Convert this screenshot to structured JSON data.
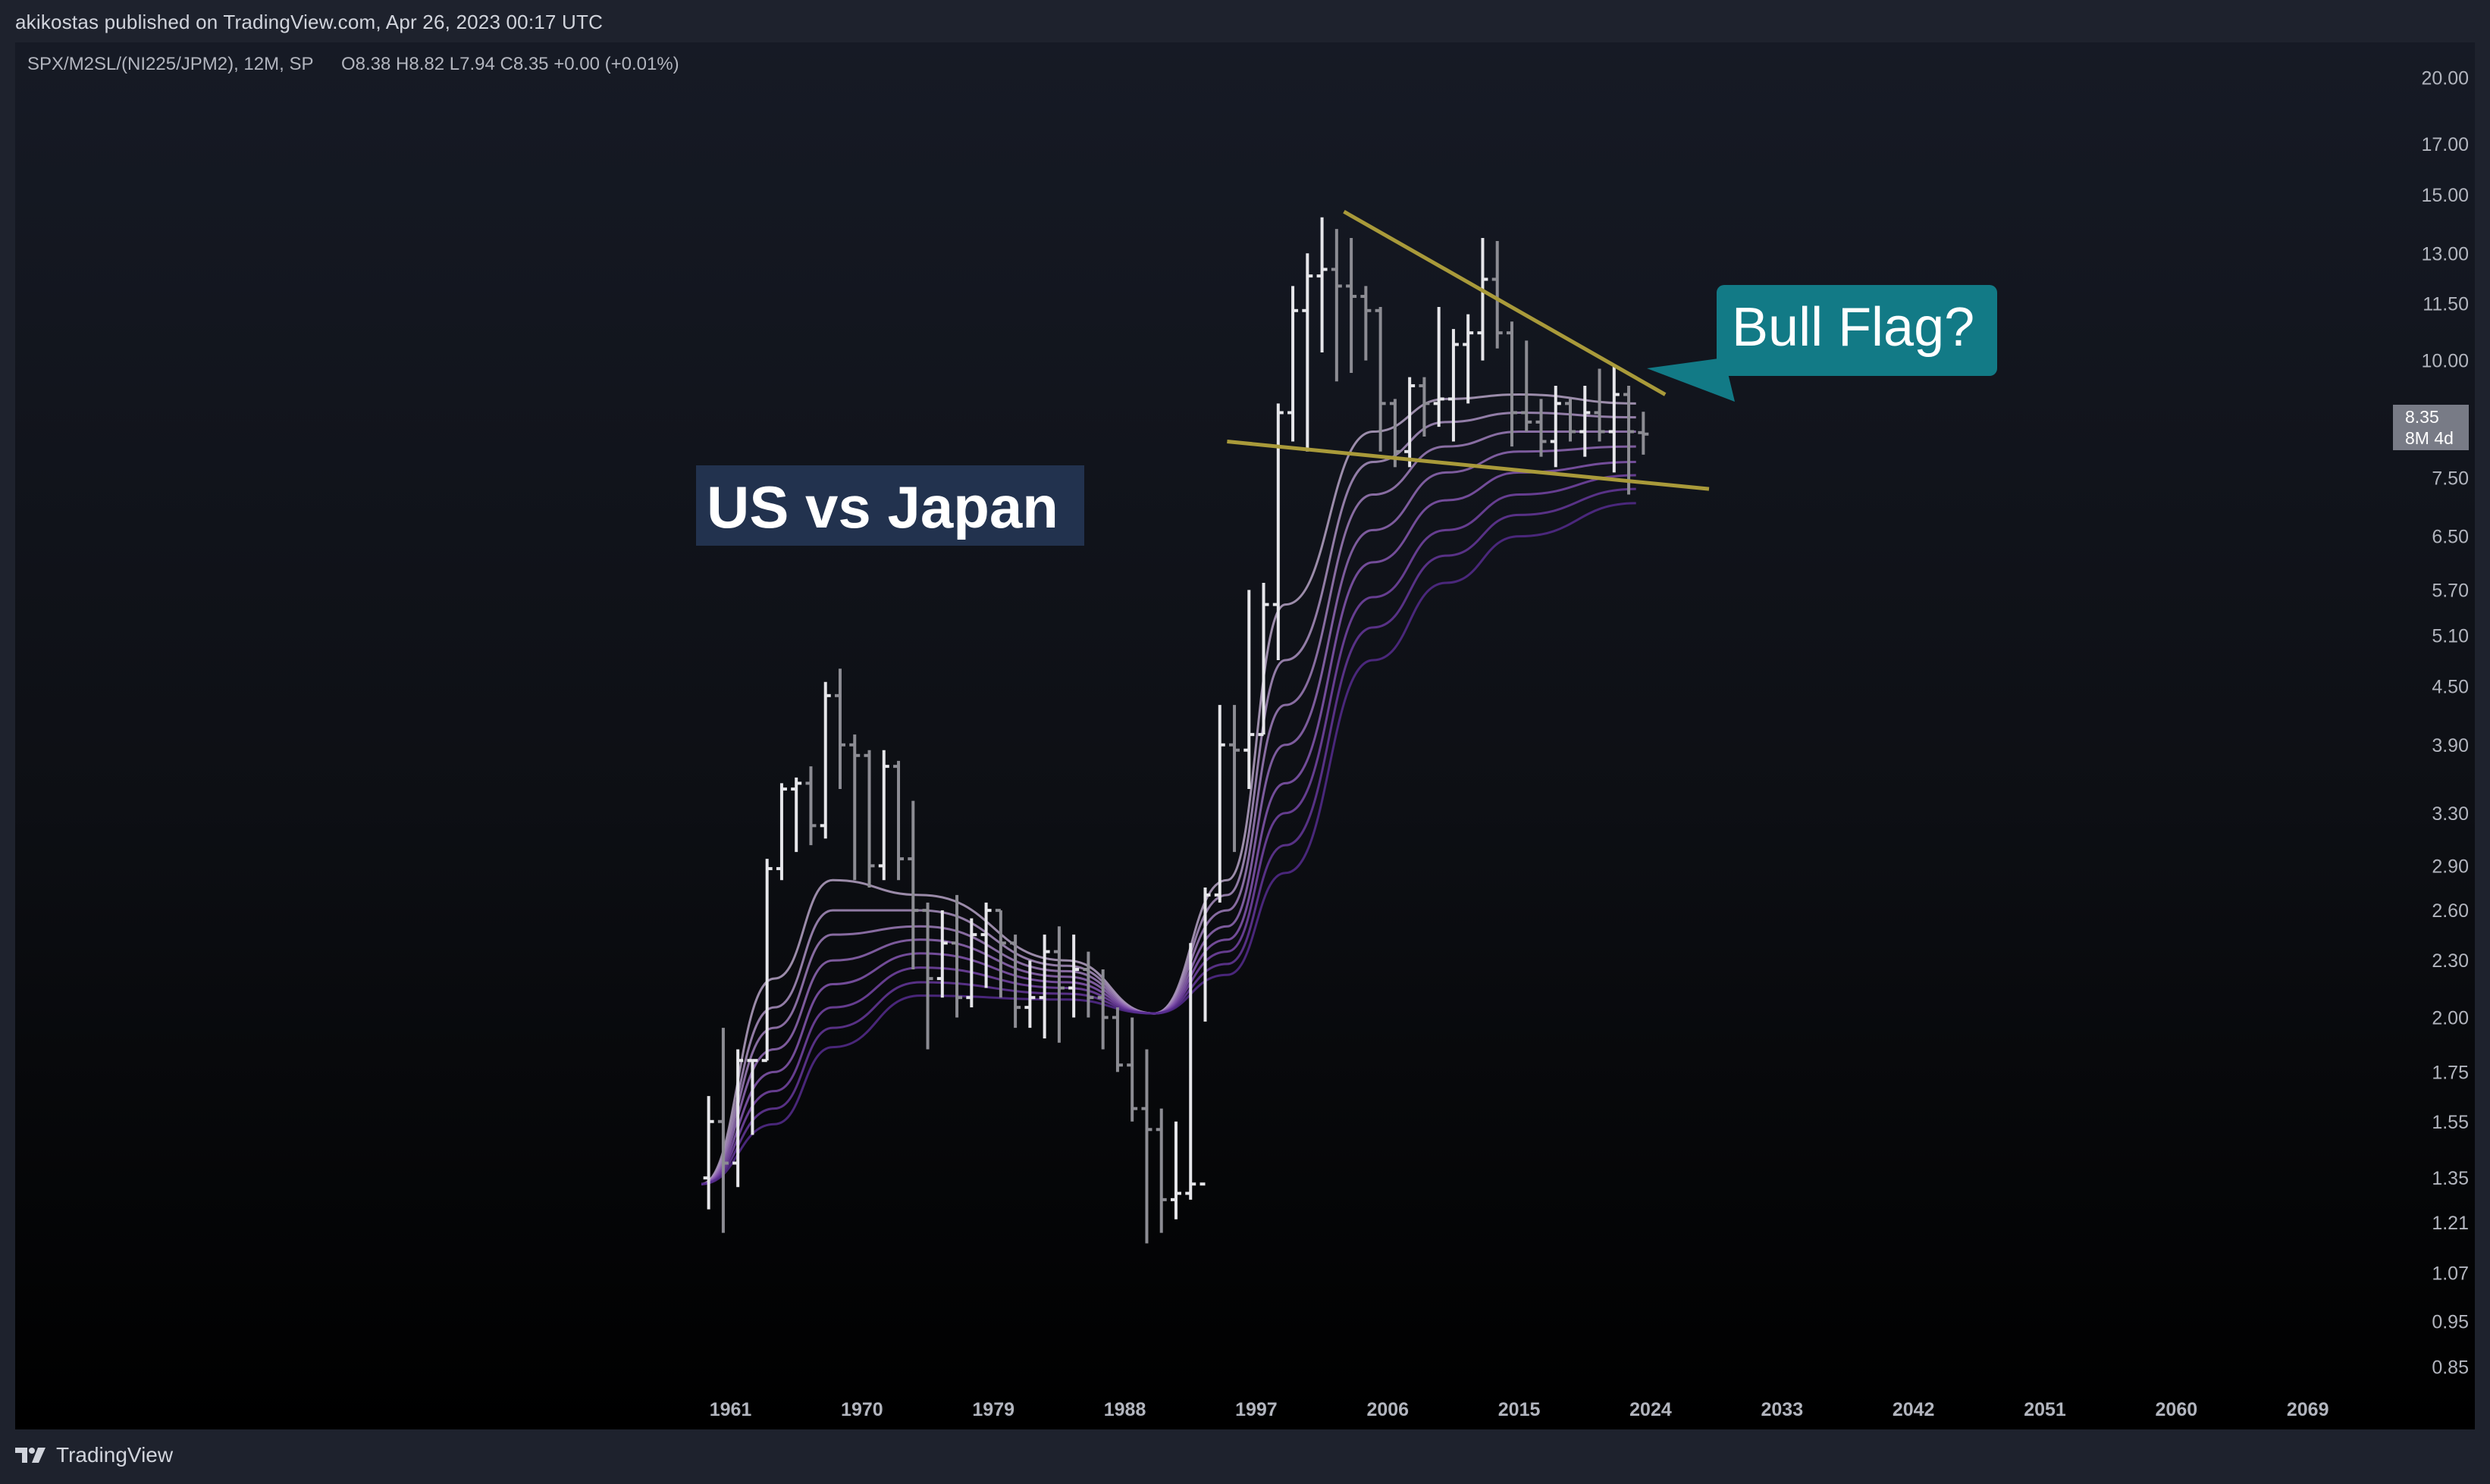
{
  "header": {
    "published_by": "akikostas published on TradingView.com, Apr 26, 2023 00:17 UTC"
  },
  "legend": {
    "symbol": "SPX/M2SL/(NI225/JPM2), 12M, SP",
    "ohlc": "O8.38  H8.82  L7.94  C8.35  +0.00 (+0.01%)"
  },
  "footer": {
    "brand": "TradingView"
  },
  "annotations": {
    "title": "US vs Japan",
    "callout": "Bull Flag?"
  },
  "price_tag": {
    "value": "8.35",
    "countdown": "8M 4d"
  },
  "colors": {
    "background": "#000000",
    "frame": "#1e222d",
    "bar_up": "#e6e6ea",
    "bar_down": "#8c8c93",
    "trendline": "#a99a3a",
    "callout": "#127a86",
    "title_box": "#22324e",
    "ribbon": [
      "#b5a2c4",
      "#a98fbf",
      "#9d7cba",
      "#9169b5",
      "#8557b0",
      "#7545a6",
      "#65379a",
      "#552b8d"
    ]
  },
  "chart_data": {
    "type": "ohlc",
    "scale": "log",
    "ylim": [
      0.8,
      21.0
    ],
    "xlim": [
      1959,
      2074
    ],
    "y_ticks": [
      "20.00",
      "17.00",
      "15.00",
      "13.00",
      "11.50",
      "10.00",
      "7.50",
      "6.50",
      "5.70",
      "5.10",
      "4.50",
      "3.90",
      "3.30",
      "2.90",
      "2.60",
      "2.30",
      "2.00",
      "1.75",
      "1.55",
      "1.35",
      "1.21",
      "1.07",
      "0.95",
      "0.85"
    ],
    "x_ticks": [
      "1961",
      "1970",
      "1979",
      "1988",
      "1997",
      "2006",
      "2015",
      "2024",
      "2033",
      "2042",
      "2051",
      "2060",
      "2069"
    ],
    "bars": [
      {
        "x": 1959,
        "o": 1.35,
        "h": 1.65,
        "l": 1.25,
        "c": 1.55
      },
      {
        "x": 1960,
        "o": 1.55,
        "h": 1.95,
        "l": 1.18,
        "c": 1.4
      },
      {
        "x": 1961,
        "o": 1.4,
        "h": 1.85,
        "l": 1.32,
        "c": 1.8
      },
      {
        "x": 1962,
        "o": 1.8,
        "h": 1.8,
        "l": 1.5,
        "c": 1.8
      },
      {
        "x": 1963,
        "o": 1.8,
        "h": 2.95,
        "l": 1.8,
        "c": 2.88
      },
      {
        "x": 1964,
        "o": 2.88,
        "h": 3.55,
        "l": 2.8,
        "c": 3.5
      },
      {
        "x": 1965,
        "o": 3.5,
        "h": 3.6,
        "l": 3.0,
        "c": 3.55
      },
      {
        "x": 1966,
        "o": 3.55,
        "h": 3.7,
        "l": 3.05,
        "c": 3.2
      },
      {
        "x": 1967,
        "o": 3.2,
        "h": 4.55,
        "l": 3.1,
        "c": 4.4
      },
      {
        "x": 1968,
        "o": 4.4,
        "h": 4.7,
        "l": 3.5,
        "c": 3.9
      },
      {
        "x": 1969,
        "o": 3.9,
        "h": 4.0,
        "l": 2.8,
        "c": 3.8
      },
      {
        "x": 1970,
        "o": 3.8,
        "h": 3.85,
        "l": 2.75,
        "c": 2.9
      },
      {
        "x": 1971,
        "o": 2.9,
        "h": 3.85,
        "l": 2.8,
        "c": 3.7
      },
      {
        "x": 1972,
        "o": 3.7,
        "h": 3.75,
        "l": 2.8,
        "c": 2.95
      },
      {
        "x": 1973,
        "o": 2.95,
        "h": 3.4,
        "l": 2.25,
        "c": 2.6
      },
      {
        "x": 1974,
        "o": 2.6,
        "h": 2.65,
        "l": 1.85,
        "c": 2.2
      },
      {
        "x": 1975,
        "o": 2.2,
        "h": 2.6,
        "l": 2.1,
        "c": 2.4
      },
      {
        "x": 1976,
        "o": 2.4,
        "h": 2.7,
        "l": 2.0,
        "c": 2.1
      },
      {
        "x": 1977,
        "o": 2.1,
        "h": 2.55,
        "l": 2.05,
        "c": 2.45
      },
      {
        "x": 1978,
        "o": 2.45,
        "h": 2.65,
        "l": 2.15,
        "c": 2.6
      },
      {
        "x": 1979,
        "o": 2.6,
        "h": 2.6,
        "l": 2.1,
        "c": 2.4
      },
      {
        "x": 1980,
        "o": 2.4,
        "h": 2.45,
        "l": 1.95,
        "c": 2.05
      },
      {
        "x": 1981,
        "o": 2.05,
        "h": 2.3,
        "l": 1.95,
        "c": 2.1
      },
      {
        "x": 1982,
        "o": 2.1,
        "h": 2.45,
        "l": 1.9,
        "c": 2.35
      },
      {
        "x": 1983,
        "o": 2.35,
        "h": 2.5,
        "l": 1.88,
        "c": 2.15
      },
      {
        "x": 1984,
        "o": 2.15,
        "h": 2.45,
        "l": 2.0,
        "c": 2.25
      },
      {
        "x": 1985,
        "o": 2.25,
        "h": 2.35,
        "l": 2.0,
        "c": 2.1
      },
      {
        "x": 1986,
        "o": 2.1,
        "h": 2.25,
        "l": 1.85,
        "c": 2.0
      },
      {
        "x": 1987,
        "o": 2.0,
        "h": 2.05,
        "l": 1.75,
        "c": 1.78
      },
      {
        "x": 1988,
        "o": 1.78,
        "h": 2.0,
        "l": 1.55,
        "c": 1.6
      },
      {
        "x": 1989,
        "o": 1.6,
        "h": 1.85,
        "l": 1.15,
        "c": 1.52
      },
      {
        "x": 1990,
        "o": 1.52,
        "h": 1.6,
        "l": 1.18,
        "c": 1.28
      },
      {
        "x": 1991,
        "o": 1.28,
        "h": 1.55,
        "l": 1.22,
        "c": 1.3
      },
      {
        "x": 1992,
        "o": 1.3,
        "h": 2.4,
        "l": 1.28,
        "c": 1.33
      },
      {
        "x": 1993,
        "o": 1.33,
        "h": 2.75,
        "l": 1.98,
        "c": 2.7
      },
      {
        "x": 1994,
        "o": 2.7,
        "h": 4.3,
        "l": 2.65,
        "c": 3.9
      },
      {
        "x": 1995,
        "o": 3.9,
        "h": 4.3,
        "l": 3.0,
        "c": 3.85
      },
      {
        "x": 1996,
        "o": 3.85,
        "h": 5.7,
        "l": 3.5,
        "c": 4.0
      },
      {
        "x": 1997,
        "o": 4.0,
        "h": 5.8,
        "l": 4.0,
        "c": 5.5
      },
      {
        "x": 1998,
        "o": 5.5,
        "h": 9.0,
        "l": 4.8,
        "c": 8.8
      },
      {
        "x": 1999,
        "o": 8.8,
        "h": 12.0,
        "l": 8.2,
        "c": 11.3
      },
      {
        "x": 2000,
        "o": 11.3,
        "h": 13.0,
        "l": 8.0,
        "c": 12.3
      },
      {
        "x": 2001,
        "o": 12.3,
        "h": 14.2,
        "l": 10.2,
        "c": 12.5
      },
      {
        "x": 2002,
        "o": 12.5,
        "h": 13.8,
        "l": 9.5,
        "c": 12.0
      },
      {
        "x": 2003,
        "o": 12.0,
        "h": 13.5,
        "l": 9.7,
        "c": 11.7
      },
      {
        "x": 2004,
        "o": 11.7,
        "h": 12.0,
        "l": 10.0,
        "c": 11.3
      },
      {
        "x": 2005,
        "o": 11.3,
        "h": 11.4,
        "l": 8.0,
        "c": 9.0
      },
      {
        "x": 2006,
        "o": 9.0,
        "h": 9.1,
        "l": 7.7,
        "c": 8.0
      },
      {
        "x": 2007,
        "o": 8.0,
        "h": 9.6,
        "l": 7.7,
        "c": 9.4
      },
      {
        "x": 2008,
        "o": 9.4,
        "h": 9.6,
        "l": 8.3,
        "c": 9.0
      },
      {
        "x": 2009,
        "o": 9.0,
        "h": 11.4,
        "l": 8.5,
        "c": 9.1
      },
      {
        "x": 2010,
        "o": 9.1,
        "h": 10.8,
        "l": 8.2,
        "c": 10.4
      },
      {
        "x": 2011,
        "o": 10.4,
        "h": 11.2,
        "l": 9.0,
        "c": 10.7
      },
      {
        "x": 2012,
        "o": 10.7,
        "h": 13.5,
        "l": 10.0,
        "c": 12.2
      },
      {
        "x": 2013,
        "o": 12.2,
        "h": 13.4,
        "l": 10.3,
        "c": 10.7
      },
      {
        "x": 2014,
        "o": 10.7,
        "h": 11.0,
        "l": 8.1,
        "c": 8.8
      },
      {
        "x": 2015,
        "o": 8.8,
        "h": 10.5,
        "l": 8.4,
        "c": 8.6
      },
      {
        "x": 2016,
        "o": 8.6,
        "h": 9.1,
        "l": 7.9,
        "c": 8.2
      },
      {
        "x": 2017,
        "o": 8.2,
        "h": 9.4,
        "l": 7.7,
        "c": 9.0
      },
      {
        "x": 2018,
        "o": 9.0,
        "h": 9.1,
        "l": 8.2,
        "c": 8.4
      },
      {
        "x": 2019,
        "o": 8.4,
        "h": 9.4,
        "l": 7.9,
        "c": 8.8
      },
      {
        "x": 2020,
        "o": 8.8,
        "h": 9.8,
        "l": 8.2,
        "c": 8.4
      },
      {
        "x": 2021,
        "o": 8.4,
        "h": 9.9,
        "l": 7.6,
        "c": 9.2
      },
      {
        "x": 2022,
        "o": 9.2,
        "h": 9.4,
        "l": 7.2,
        "c": 8.4
      },
      {
        "x": 2023,
        "o": 8.38,
        "h": 8.82,
        "l": 7.94,
        "c": 8.35
      }
    ],
    "ribbon_series": [
      {
        "values": [
          [
            1959,
            1.33
          ],
          [
            1964,
            2.2
          ],
          [
            1968,
            2.8
          ],
          [
            1974,
            2.7
          ],
          [
            1984,
            2.3
          ],
          [
            1990,
            2.02
          ],
          [
            1995,
            2.8
          ],
          [
            1999,
            5.5
          ],
          [
            2005,
            8.4
          ],
          [
            2010,
            9.1
          ],
          [
            2015,
            9.2
          ],
          [
            2023,
            9.0
          ]
        ]
      },
      {
        "values": [
          [
            1959,
            1.33
          ],
          [
            1964,
            2.05
          ],
          [
            1968,
            2.6
          ],
          [
            1974,
            2.6
          ],
          [
            1984,
            2.27
          ],
          [
            1990,
            2.02
          ],
          [
            1995,
            2.7
          ],
          [
            1999,
            4.8
          ],
          [
            2005,
            7.8
          ],
          [
            2010,
            8.6
          ],
          [
            2015,
            8.8
          ],
          [
            2023,
            8.7
          ]
        ]
      },
      {
        "values": [
          [
            1959,
            1.33
          ],
          [
            1964,
            1.95
          ],
          [
            1968,
            2.45
          ],
          [
            1974,
            2.5
          ],
          [
            1984,
            2.24
          ],
          [
            1990,
            2.02
          ],
          [
            1995,
            2.6
          ],
          [
            1999,
            4.3
          ],
          [
            2005,
            7.2
          ],
          [
            2010,
            8.1
          ],
          [
            2015,
            8.4
          ],
          [
            2023,
            8.4
          ]
        ]
      },
      {
        "values": [
          [
            1959,
            1.33
          ],
          [
            1964,
            1.85
          ],
          [
            1968,
            2.3
          ],
          [
            1974,
            2.42
          ],
          [
            1984,
            2.21
          ],
          [
            1990,
            2.02
          ],
          [
            1995,
            2.5
          ],
          [
            1999,
            3.9
          ],
          [
            2005,
            6.6
          ],
          [
            2010,
            7.6
          ],
          [
            2015,
            8.0
          ],
          [
            2023,
            8.1
          ]
        ]
      },
      {
        "values": [
          [
            1959,
            1.33
          ],
          [
            1964,
            1.75
          ],
          [
            1968,
            2.17
          ],
          [
            1974,
            2.34
          ],
          [
            1984,
            2.18
          ],
          [
            1990,
            2.02
          ],
          [
            1995,
            2.42
          ],
          [
            1999,
            3.55
          ],
          [
            2005,
            6.1
          ],
          [
            2010,
            7.1
          ],
          [
            2015,
            7.6
          ],
          [
            2023,
            7.8
          ]
        ]
      },
      {
        "values": [
          [
            1959,
            1.33
          ],
          [
            1964,
            1.67
          ],
          [
            1968,
            2.05
          ],
          [
            1974,
            2.26
          ],
          [
            1984,
            2.15
          ],
          [
            1990,
            2.02
          ],
          [
            1995,
            2.35
          ],
          [
            1999,
            3.3
          ],
          [
            2005,
            5.6
          ],
          [
            2010,
            6.6
          ],
          [
            2015,
            7.2
          ],
          [
            2023,
            7.55
          ]
        ]
      },
      {
        "values": [
          [
            1959,
            1.33
          ],
          [
            1964,
            1.6
          ],
          [
            1968,
            1.95
          ],
          [
            1974,
            2.18
          ],
          [
            1984,
            2.12
          ],
          [
            1990,
            2.02
          ],
          [
            1995,
            2.28
          ],
          [
            1999,
            3.05
          ],
          [
            2005,
            5.2
          ],
          [
            2010,
            6.2
          ],
          [
            2015,
            6.85
          ],
          [
            2023,
            7.3
          ]
        ]
      },
      {
        "values": [
          [
            1959,
            1.33
          ],
          [
            1964,
            1.54
          ],
          [
            1968,
            1.86
          ],
          [
            1974,
            2.11
          ],
          [
            1984,
            2.09
          ],
          [
            1990,
            2.02
          ],
          [
            1995,
            2.22
          ],
          [
            1999,
            2.85
          ],
          [
            2005,
            4.8
          ],
          [
            2010,
            5.8
          ],
          [
            2015,
            6.5
          ],
          [
            2023,
            7.05
          ]
        ]
      }
    ],
    "trendlines": [
      {
        "from": [
          2003,
          14.4
        ],
        "to": [
          2025,
          9.2
        ]
      },
      {
        "from": [
          1995,
          8.2
        ],
        "to": [
          2028,
          7.3
        ]
      }
    ]
  }
}
